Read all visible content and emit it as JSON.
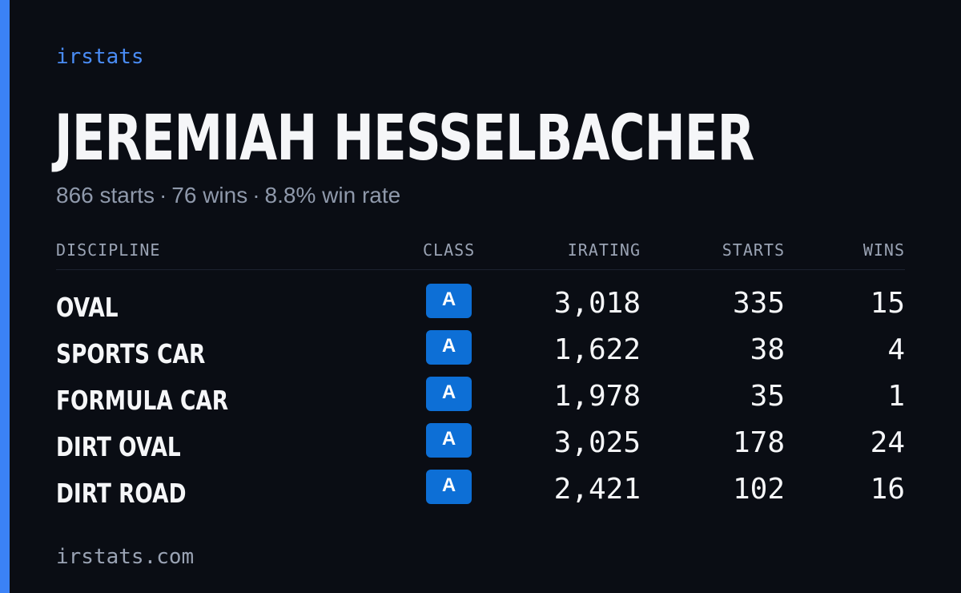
{
  "brand": "irstats",
  "driver": {
    "name": "JEREMIAH HESSELBACHER"
  },
  "summary": {
    "starts": "866 starts",
    "wins": "76 wins",
    "win_rate": "8.8% win rate",
    "separator": "·"
  },
  "table": {
    "headers": {
      "discipline": "DISCIPLINE",
      "class": "CLASS",
      "irating": "IRATING",
      "starts": "STARTS",
      "wins": "WINS"
    },
    "rows": [
      {
        "discipline": "OVAL",
        "class": "A",
        "irating": "3,018",
        "starts": "335",
        "wins": "15"
      },
      {
        "discipline": "SPORTS CAR",
        "class": "A",
        "irating": "1,622",
        "starts": "38",
        "wins": "4"
      },
      {
        "discipline": "FORMULA CAR",
        "class": "A",
        "irating": "1,978",
        "starts": "35",
        "wins": "1"
      },
      {
        "discipline": "DIRT OVAL",
        "class": "A",
        "irating": "3,025",
        "starts": "178",
        "wins": "24"
      },
      {
        "discipline": "DIRT ROAD",
        "class": "A",
        "irating": "2,421",
        "starts": "102",
        "wins": "16"
      }
    ]
  },
  "footer": {
    "domain": "irstats.com"
  },
  "colors": {
    "background": "#0a0d14",
    "accent": "#3b82f6",
    "brand_text": "#4a8cf5",
    "class_badge": "#0d6fd6",
    "muted_text": "#8f99ab"
  }
}
